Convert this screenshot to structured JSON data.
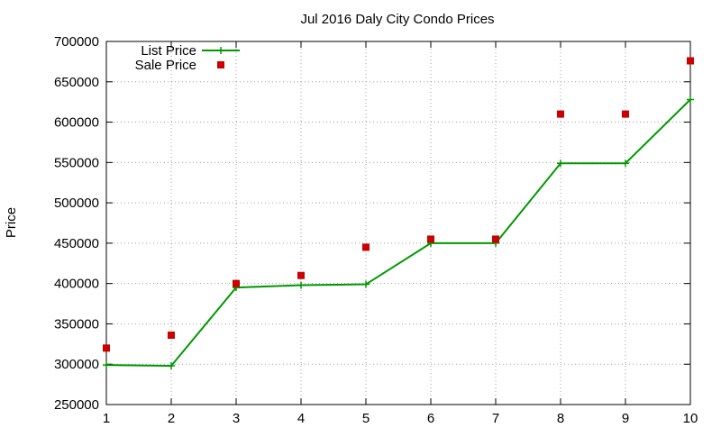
{
  "chart_data": {
    "type": "line",
    "title": "Jul 2016 Daly City Condo Prices",
    "ylabel": "Price",
    "xlabel": "",
    "x": [
      1,
      2,
      3,
      4,
      5,
      6,
      7,
      8,
      9,
      10
    ],
    "xlim": [
      1,
      10
    ],
    "ylim": [
      250000,
      700000
    ],
    "xticks": [
      "1",
      "2",
      "3",
      "4",
      "5",
      "6",
      "7",
      "8",
      "9",
      "10"
    ],
    "yticks": [
      "250000",
      "300000",
      "350000",
      "400000",
      "450000",
      "500000",
      "550000",
      "600000",
      "650000",
      "700000"
    ],
    "ytick_values": [
      250000,
      300000,
      350000,
      400000,
      450000,
      500000,
      550000,
      600000,
      650000,
      700000
    ],
    "grid": true,
    "legend_position": "top-left",
    "series": [
      {
        "name": "List Price",
        "style": "line-points",
        "color": "#009900",
        "values": [
          299000,
          298000,
          395000,
          398000,
          399000,
          450000,
          450000,
          549000,
          549000,
          628000
        ]
      },
      {
        "name": "Sale Price",
        "style": "points",
        "color": "#cc0000",
        "values": [
          320000,
          336000,
          400000,
          410000,
          445000,
          455000,
          455000,
          610000,
          610000,
          676000
        ]
      }
    ]
  }
}
